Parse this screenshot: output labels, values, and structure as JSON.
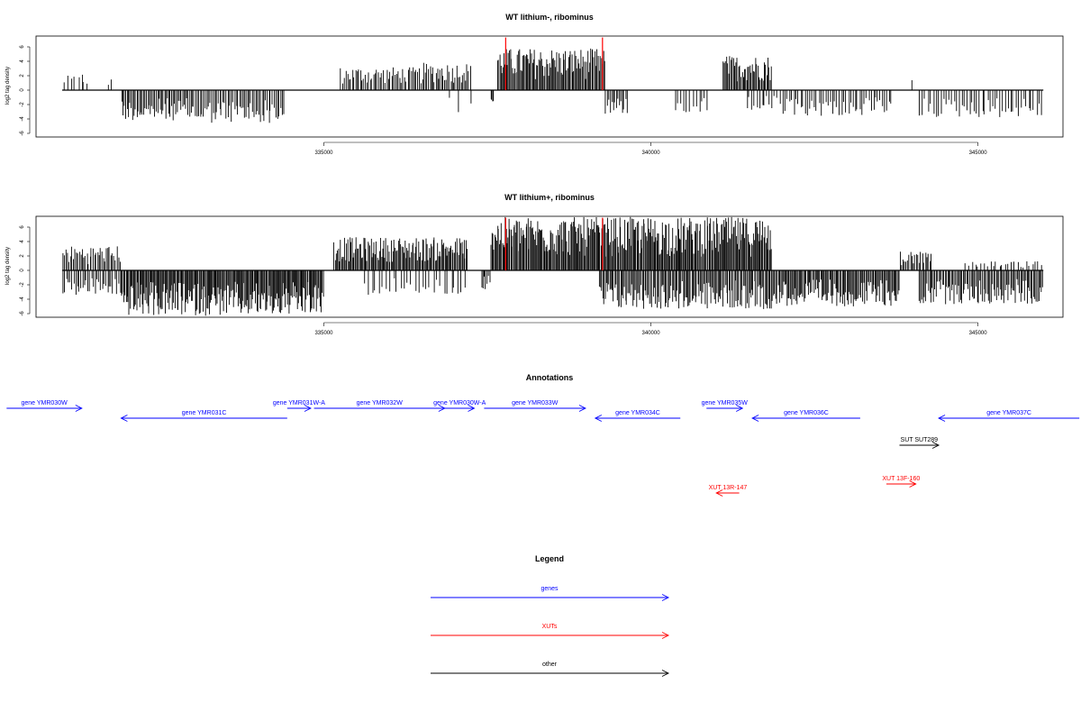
{
  "colors": {
    "genes": "#0000ff",
    "XUTs": "#ff0000",
    "other": "#000000",
    "signal": "#000000",
    "markers": "#ff0000"
  },
  "chart_data": [
    {
      "type": "bar",
      "title": "WT lithium-, ribominus",
      "xlabel": "",
      "ylabel": "log2 tag density",
      "xlim": [
        330600,
        346300
      ],
      "ylim": [
        -6.5,
        7.5
      ],
      "x_ticks": [
        335000,
        340000,
        345000
      ],
      "y_ticks": [
        6,
        4,
        2,
        0,
        -2,
        -4,
        -6
      ],
      "grid": false,
      "marker_lines_x": [
        337780,
        339260
      ],
      "signal_segments": [
        {
          "x_start": 331000,
          "x_end": 331400,
          "sign": 1,
          "max": 2.0,
          "density": 0.25
        },
        {
          "x_start": 331300,
          "x_end": 331320,
          "sign": 1,
          "max": 2.9,
          "density": 1
        },
        {
          "x_start": 331700,
          "x_end": 331760,
          "sign": 1,
          "max": 1.6,
          "density": 0.5
        },
        {
          "x_start": 331900,
          "x_end": 333000,
          "sign": -1,
          "max": 4.2,
          "density": 0.65
        },
        {
          "x_start": 333000,
          "x_end": 334400,
          "sign": -1,
          "max": 4.6,
          "density": 0.55
        },
        {
          "x_start": 335250,
          "x_end": 336500,
          "sign": 1,
          "max": 3.2,
          "density": 0.55
        },
        {
          "x_start": 336500,
          "x_end": 337250,
          "sign": 1,
          "max": 3.8,
          "density": 0.6
        },
        {
          "x_start": 336900,
          "x_end": 337300,
          "sign": -1,
          "max": 3.2,
          "density": 0.12
        },
        {
          "x_start": 337550,
          "x_end": 337600,
          "sign": -1,
          "max": 2.3,
          "density": 1
        },
        {
          "x_start": 337650,
          "x_end": 339300,
          "sign": 1,
          "max": 5.8,
          "density": 0.85
        },
        {
          "x_start": 339300,
          "x_end": 339650,
          "sign": -1,
          "max": 3.3,
          "density": 0.6
        },
        {
          "x_start": 340350,
          "x_end": 340900,
          "sign": -1,
          "max": 3.2,
          "density": 0.3
        },
        {
          "x_start": 341100,
          "x_end": 341850,
          "sign": 1,
          "max": 4.8,
          "density": 0.8
        },
        {
          "x_start": 341450,
          "x_end": 342000,
          "sign": -1,
          "max": 3.0,
          "density": 0.35
        },
        {
          "x_start": 342000,
          "x_end": 343700,
          "sign": -1,
          "max": 3.6,
          "density": 0.4
        },
        {
          "x_start": 343980,
          "x_end": 344000,
          "sign": 1,
          "max": 2.0,
          "density": 1
        },
        {
          "x_start": 344100,
          "x_end": 346000,
          "sign": -1,
          "max": 3.8,
          "density": 0.35
        }
      ]
    },
    {
      "type": "bar",
      "title": "WT lithium+, ribominus",
      "xlabel": "",
      "ylabel": "log2 tag density",
      "xlim": [
        330600,
        346300
      ],
      "ylim": [
        -6.5,
        7.5
      ],
      "x_ticks": [
        335000,
        340000,
        345000
      ],
      "y_ticks": [
        6,
        4,
        2,
        0,
        -2,
        -4,
        -6
      ],
      "grid": false,
      "marker_lines_x": [
        337780,
        339260
      ],
      "signal_segments": [
        {
          "x_start": 331000,
          "x_end": 331900,
          "sign": 1,
          "max": 3.4,
          "density": 0.6
        },
        {
          "x_start": 331000,
          "x_end": 331900,
          "sign": -1,
          "max": 3.5,
          "density": 0.5
        },
        {
          "x_start": 331900,
          "x_end": 335000,
          "sign": -1,
          "max": 6.3,
          "density": 0.95
        },
        {
          "x_start": 335150,
          "x_end": 337200,
          "sign": 1,
          "max": 4.6,
          "density": 0.85
        },
        {
          "x_start": 335600,
          "x_end": 337200,
          "sign": -1,
          "max": 3.5,
          "density": 0.25
        },
        {
          "x_start": 337400,
          "x_end": 337550,
          "sign": -1,
          "max": 2.8,
          "density": 0.6
        },
        {
          "x_start": 337550,
          "x_end": 341850,
          "sign": 1,
          "max": 7.4,
          "density": 0.95
        },
        {
          "x_start": 339200,
          "x_end": 341850,
          "sign": -1,
          "max": 5.4,
          "density": 0.75
        },
        {
          "x_start": 341850,
          "x_end": 343800,
          "sign": -1,
          "max": 5.0,
          "density": 0.8
        },
        {
          "x_start": 343800,
          "x_end": 344300,
          "sign": 1,
          "max": 2.7,
          "density": 0.6
        },
        {
          "x_start": 344100,
          "x_end": 346000,
          "sign": -1,
          "max": 4.7,
          "density": 0.7
        },
        {
          "x_start": 344800,
          "x_end": 346000,
          "sign": 1,
          "max": 1.3,
          "density": 0.3
        }
      ]
    }
  ],
  "annotations": {
    "title": "Annotations",
    "features": [
      {
        "label": "gene YMR030W",
        "kind": "genes",
        "strand": "+",
        "start": 330150,
        "end": 331300,
        "row": 0
      },
      {
        "label": "gene YMR031C",
        "kind": "genes",
        "strand": "-",
        "start": 331900,
        "end": 334440,
        "row": 1
      },
      {
        "label": "gene YMR031W-A",
        "kind": "genes",
        "strand": "+",
        "start": 334440,
        "end": 334800,
        "row": 0
      },
      {
        "label": "gene YMR032W",
        "kind": "genes",
        "strand": "+",
        "start": 334850,
        "end": 336850,
        "row": 0
      },
      {
        "label": "gene YMR030W-A",
        "kind": "genes",
        "strand": "+",
        "start": 336850,
        "end": 337300,
        "row": 0
      },
      {
        "label": "gene YMR033W",
        "kind": "genes",
        "strand": "+",
        "start": 337450,
        "end": 339000,
        "row": 0
      },
      {
        "label": "gene YMR034C",
        "kind": "genes",
        "strand": "-",
        "start": 339150,
        "end": 340450,
        "row": 1
      },
      {
        "label": "gene YMR035W",
        "kind": "genes",
        "strand": "+",
        "start": 340850,
        "end": 341400,
        "row": 0
      },
      {
        "label": "gene YMR036C",
        "kind": "genes",
        "strand": "-",
        "start": 341550,
        "end": 343200,
        "row": 1
      },
      {
        "label": "SUT SUT289",
        "kind": "other",
        "strand": "+",
        "start": 343800,
        "end": 344400,
        "row": 2
      },
      {
        "label": "gene YMR037C",
        "kind": "genes",
        "strand": "-",
        "start": 344400,
        "end": 346550,
        "row": 1
      },
      {
        "label": "XUT 13F-160",
        "kind": "XUTs",
        "strand": "+",
        "start": 343600,
        "end": 344050,
        "row": 3
      },
      {
        "label": "XUT 13R-147",
        "kind": "XUTs",
        "strand": "-",
        "start": 341000,
        "end": 341350,
        "row": 4
      }
    ]
  },
  "legend": {
    "title": "Legend",
    "items": [
      {
        "label": "genes",
        "kind": "genes"
      },
      {
        "label": "XUTs",
        "kind": "XUTs"
      },
      {
        "label": "other",
        "kind": "other"
      }
    ]
  }
}
